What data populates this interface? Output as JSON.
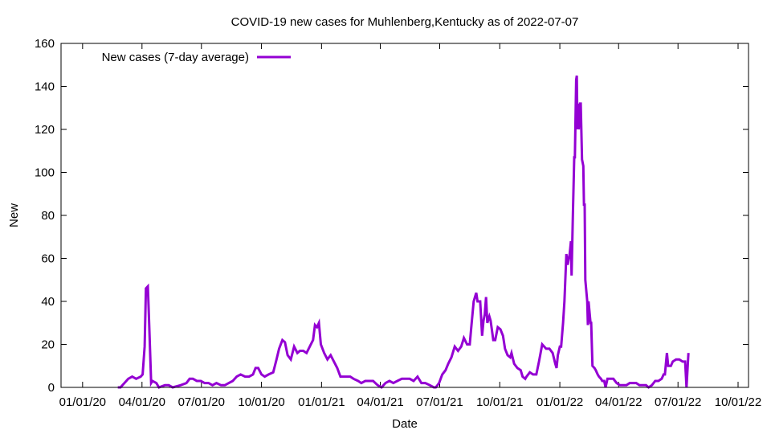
{
  "chart_data": {
    "type": "line",
    "title": "COVID-19 new cases for Muhlenberg,Kentucky as of 2022-07-07",
    "xlabel": "Date",
    "ylabel": "New",
    "x_unit": "days since 2020-01-01",
    "xlim": [
      -33,
      1020
    ],
    "ylim": [
      0,
      160
    ],
    "grid": false,
    "legend_position": "top-left",
    "x_ticks": [
      {
        "value": 0,
        "label": "01/01/20"
      },
      {
        "value": 91,
        "label": "04/01/20"
      },
      {
        "value": 182,
        "label": "07/01/20"
      },
      {
        "value": 274,
        "label": "10/01/20"
      },
      {
        "value": 366,
        "label": "01/01/21"
      },
      {
        "value": 456,
        "label": "04/01/21"
      },
      {
        "value": 547,
        "label": "07/01/21"
      },
      {
        "value": 639,
        "label": "10/01/21"
      },
      {
        "value": 731,
        "label": "01/01/22"
      },
      {
        "value": 821,
        "label": "04/01/22"
      },
      {
        "value": 912,
        "label": "07/01/22"
      },
      {
        "value": 1004,
        "label": "10/01/22"
      }
    ],
    "y_ticks": [
      {
        "value": 0,
        "label": "0"
      },
      {
        "value": 20,
        "label": "20"
      },
      {
        "value": 40,
        "label": "40"
      },
      {
        "value": 60,
        "label": "60"
      },
      {
        "value": 80,
        "label": "80"
      },
      {
        "value": 100,
        "label": "100"
      },
      {
        "value": 120,
        "label": "120"
      },
      {
        "value": 140,
        "label": "140"
      },
      {
        "value": 160,
        "label": "160"
      }
    ],
    "series": [
      {
        "name": "New cases (7-day average)",
        "color": "#9400d3",
        "x": [
          54,
          58,
          64,
          70,
          76,
          82,
          89,
          92,
          95,
          97,
          100,
          102,
          105,
          107,
          113,
          117,
          126,
          132,
          138,
          150,
          159,
          164,
          169,
          175,
          181,
          187,
          193,
          199,
          205,
          212,
          218,
          224,
          230,
          236,
          242,
          249,
          255,
          261,
          265,
          269,
          274,
          279,
          285,
          292,
          297,
          301,
          306,
          310,
          314,
          319,
          324,
          329,
          333,
          338,
          343,
          348,
          353,
          356,
          359,
          362,
          365,
          370,
          375,
          380,
          385,
          390,
          395,
          400,
          405,
          410,
          415,
          422,
          427,
          433,
          439,
          445,
          452,
          458,
          464,
          470,
          476,
          482,
          489,
          495,
          501,
          507,
          513,
          519,
          525,
          532,
          538,
          541,
          546,
          551,
          556,
          560,
          565,
          570,
          575,
          580,
          584,
          589,
          593,
          596,
          599,
          603,
          605,
          609,
          612,
          614,
          616,
          618,
          620,
          623,
          625,
          629,
          632,
          636,
          640,
          644,
          647,
          651,
          655,
          657,
          661,
          666,
          671,
          674,
          678,
          680,
          685,
          690,
          695,
          699,
          704,
          710,
          715,
          720,
          724,
          726,
          728,
          731,
          733,
          736,
          738,
          741,
          743,
          746,
          748,
          749,
          751,
          753,
          754,
          756,
          757,
          758,
          759,
          760,
          762,
          763,
          765,
          767,
          768,
          769,
          770,
          773,
          774,
          775,
          778,
          779,
          781,
          784,
          786,
          789,
          791,
          794,
          796,
          799,
          801,
          804,
          808,
          813,
          818,
          823,
          828,
          833,
          838,
          843,
          848,
          853,
          858,
          863,
          867,
          872,
          877,
          882,
          887,
          890,
          892,
          895,
          897,
          901,
          904,
          909,
          914,
          919,
          923,
          925,
          928
        ],
        "y": [
          0,
          0,
          2,
          4,
          5,
          4,
          5,
          6,
          19,
          46,
          47,
          30,
          2,
          3,
          2,
          0,
          1,
          1,
          0,
          1,
          2,
          4,
          4,
          3,
          3,
          2,
          2,
          1,
          2,
          1,
          1,
          2,
          3,
          5,
          6,
          5,
          5,
          6,
          9,
          9,
          6,
          5,
          6,
          7,
          13,
          18,
          22,
          21,
          15,
          13,
          19,
          16,
          17,
          17,
          16,
          19,
          22,
          29,
          28,
          30,
          20,
          16,
          13,
          15,
          12,
          9,
          5,
          5,
          5,
          5,
          4,
          3,
          2,
          3,
          3,
          3,
          1,
          0,
          2,
          3,
          2,
          3,
          4,
          4,
          4,
          3,
          5,
          2,
          2,
          1,
          0,
          0,
          2,
          6,
          8,
          11,
          14,
          19,
          17,
          19,
          23,
          20,
          20,
          30,
          40,
          44,
          40,
          40,
          24,
          31,
          34,
          42,
          30,
          33,
          31,
          22,
          22,
          28,
          27,
          24,
          18,
          15,
          14,
          16,
          11,
          9,
          8,
          5,
          4,
          5,
          7,
          6,
          6,
          12,
          20,
          18,
          18,
          16,
          11,
          9,
          15,
          19,
          19,
          30,
          40,
          62,
          57,
          62,
          68,
          52,
          80,
          107,
          107,
          143,
          145,
          120,
          132,
          120,
          132,
          132,
          106,
          103,
          85,
          85,
          50,
          40,
          29,
          40,
          30,
          30,
          10,
          9,
          8,
          6,
          5,
          4,
          3,
          3,
          0,
          4,
          4,
          4,
          2,
          1,
          1,
          1,
          2,
          2,
          2,
          1,
          1,
          1,
          0,
          1,
          3,
          3,
          4,
          6,
          6,
          16,
          10,
          10,
          12,
          13,
          13,
          12,
          12,
          0,
          16
        ]
      }
    ]
  }
}
